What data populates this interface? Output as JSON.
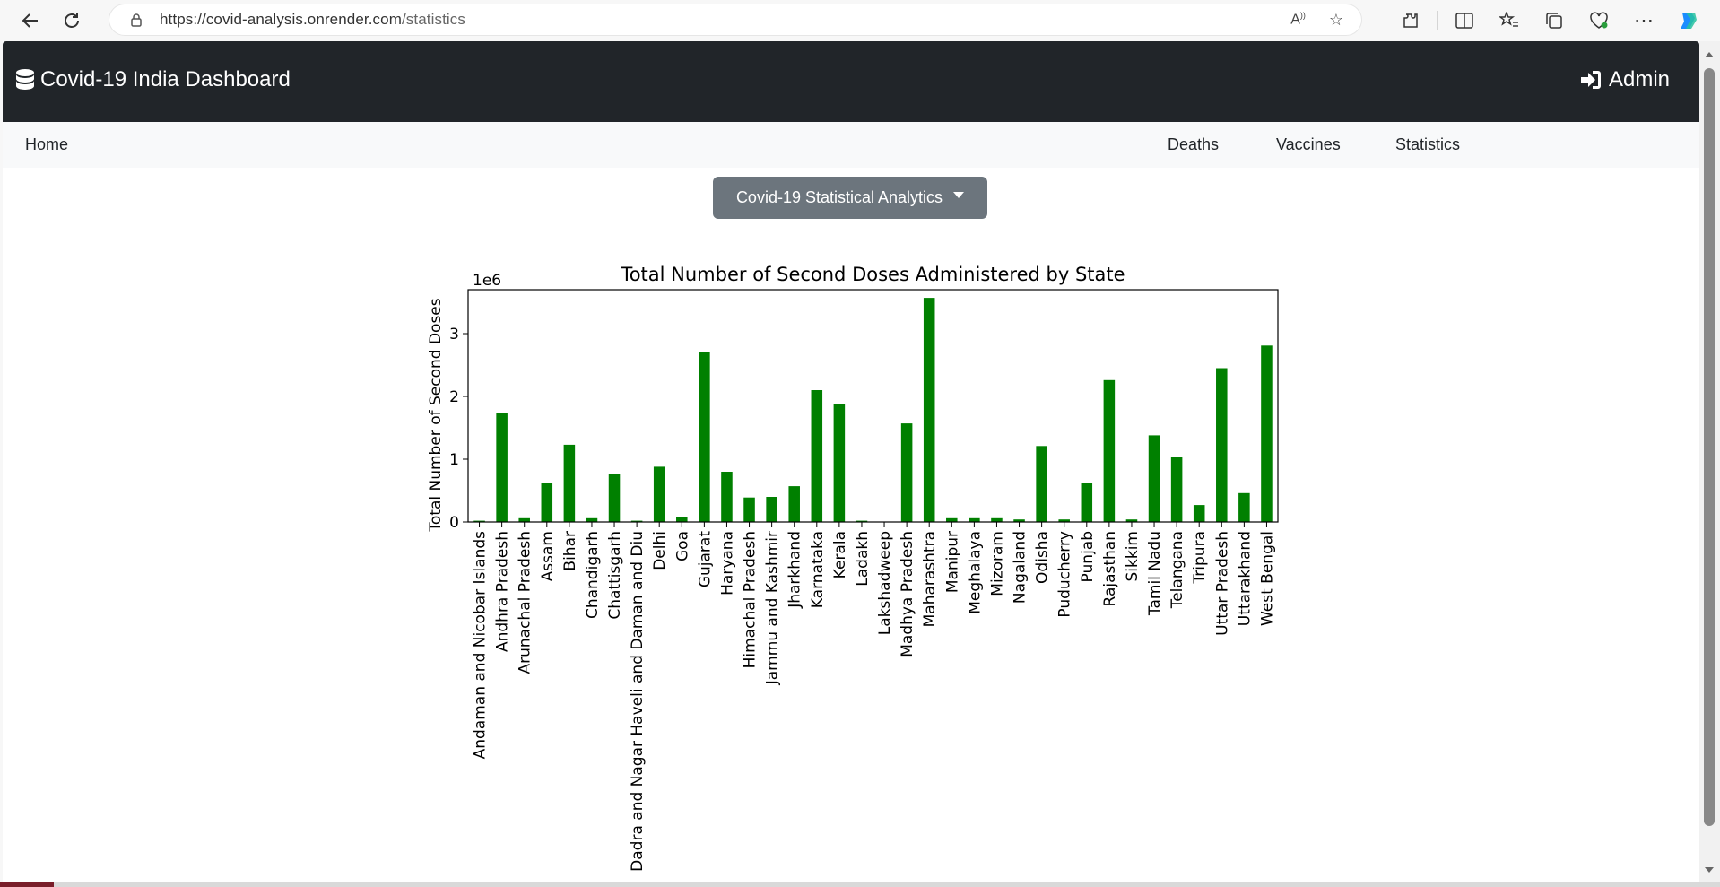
{
  "browser": {
    "url_host": "https://covid-analysis.onrender.com",
    "url_path": "/statistics"
  },
  "header": {
    "brand": "Covid-19 India Dashboard",
    "admin_label": "Admin"
  },
  "nav": {
    "home": "Home",
    "deaths": "Deaths",
    "vaccines": "Vaccines",
    "statistics": "Statistics"
  },
  "dropdown": {
    "label": "Covid-19 Statistical Analytics"
  },
  "colors": {
    "bar": "#008000",
    "header_bg": "#212529",
    "button_bg": "#6c757d"
  },
  "chart_data": {
    "type": "bar",
    "title": "Total Number of Second Doses Administered by State",
    "xlabel": "",
    "ylabel": "Total Number of Second Doses",
    "scale_label": "1e6",
    "ylim": [
      0,
      3.7
    ],
    "yticks": [
      0,
      1,
      2,
      3
    ],
    "grid": false,
    "categories": [
      "Andaman and Nicobar Islands",
      "Andhra Pradesh",
      "Arunachal Pradesh",
      "Assam",
      "Bihar",
      "Chandigarh",
      "Chattisgarh",
      "Dadra and Nagar Haveli and Daman and Diu",
      "Delhi",
      "Goa",
      "Gujarat",
      "Haryana",
      "Himachal Pradesh",
      "Jammu and Kashmir",
      "Jharkhand",
      "Karnataka",
      "Kerala",
      "Ladakh",
      "Lakshadweep",
      "Madhya Pradesh",
      "Maharashtra",
      "Manipur",
      "Meghalaya",
      "Mizoram",
      "Nagaland",
      "Odisha",
      "Puducherry",
      "Punjab",
      "Rajasthan",
      "Sikkim",
      "Tamil Nadu",
      "Telangana",
      "Tripura",
      "Uttar Pradesh",
      "Uttarakhand",
      "West Bengal"
    ],
    "values": [
      0.02,
      1.74,
      0.06,
      0.62,
      1.23,
      0.06,
      0.76,
      0.02,
      0.88,
      0.08,
      2.71,
      0.8,
      0.39,
      0.4,
      0.57,
      2.1,
      1.88,
      0.02,
      0.005,
      1.57,
      3.57,
      0.06,
      0.06,
      0.06,
      0.04,
      1.21,
      0.04,
      0.62,
      2.26,
      0.04,
      1.38,
      1.03,
      0.27,
      2.45,
      0.46,
      2.81
    ]
  }
}
